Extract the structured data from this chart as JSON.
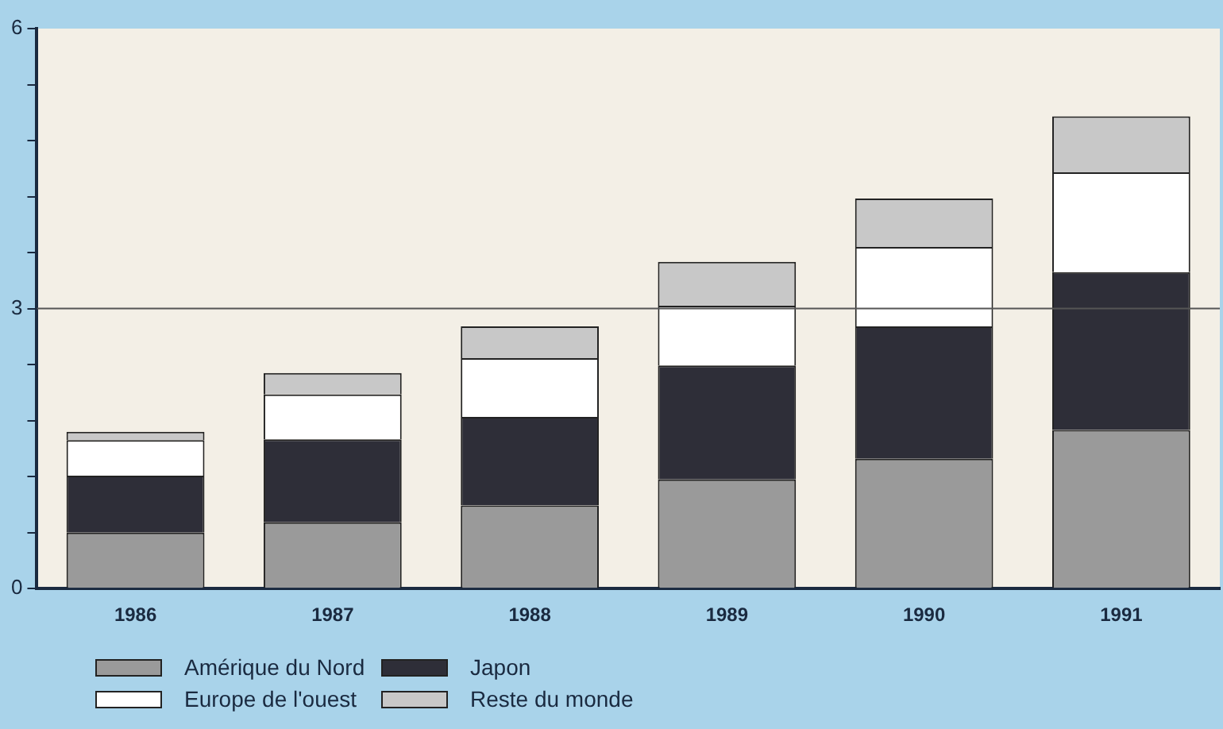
{
  "chart_data": {
    "type": "bar",
    "stacked": true,
    "categories": [
      "1986",
      "1987",
      "1988",
      "1989",
      "1990",
      "1991"
    ],
    "series": [
      {
        "name": "Amérique du Nord",
        "color": "#9a9a9a",
        "values": [
          0.6,
          0.71,
          0.89,
          1.17,
          1.39,
          1.7
        ]
      },
      {
        "name": "Japon",
        "color": "#2e2e38",
        "values": [
          0.61,
          0.89,
          0.95,
          1.22,
          1.42,
          1.69
        ]
      },
      {
        "name": "Europe de l'ouest",
        "color": "#ffffff",
        "values": [
          0.38,
          0.48,
          0.63,
          0.64,
          0.85,
          1.07
        ]
      },
      {
        "name": "Reste du monde",
        "color": "#c8c8c8",
        "values": [
          0.09,
          0.23,
          0.34,
          0.47,
          0.52,
          0.6
        ]
      }
    ],
    "ylim": [
      0,
      6
    ],
    "yticks": [
      0,
      {
        "value": 0.6,
        "label": null
      },
      {
        "value": 1.2,
        "label": null
      },
      {
        "value": 1.8,
        "label": null
      },
      {
        "value": 2.4,
        "label": null
      },
      3,
      {
        "value": 3.6,
        "label": null
      },
      {
        "value": 4.2,
        "label": null
      },
      {
        "value": 4.8,
        "label": null
      },
      {
        "value": 5.4,
        "label": null
      },
      6
    ],
    "ref_lines": [
      {
        "axis": "y",
        "value": 3,
        "color": "#555555"
      }
    ],
    "legend": "bottom"
  }
}
